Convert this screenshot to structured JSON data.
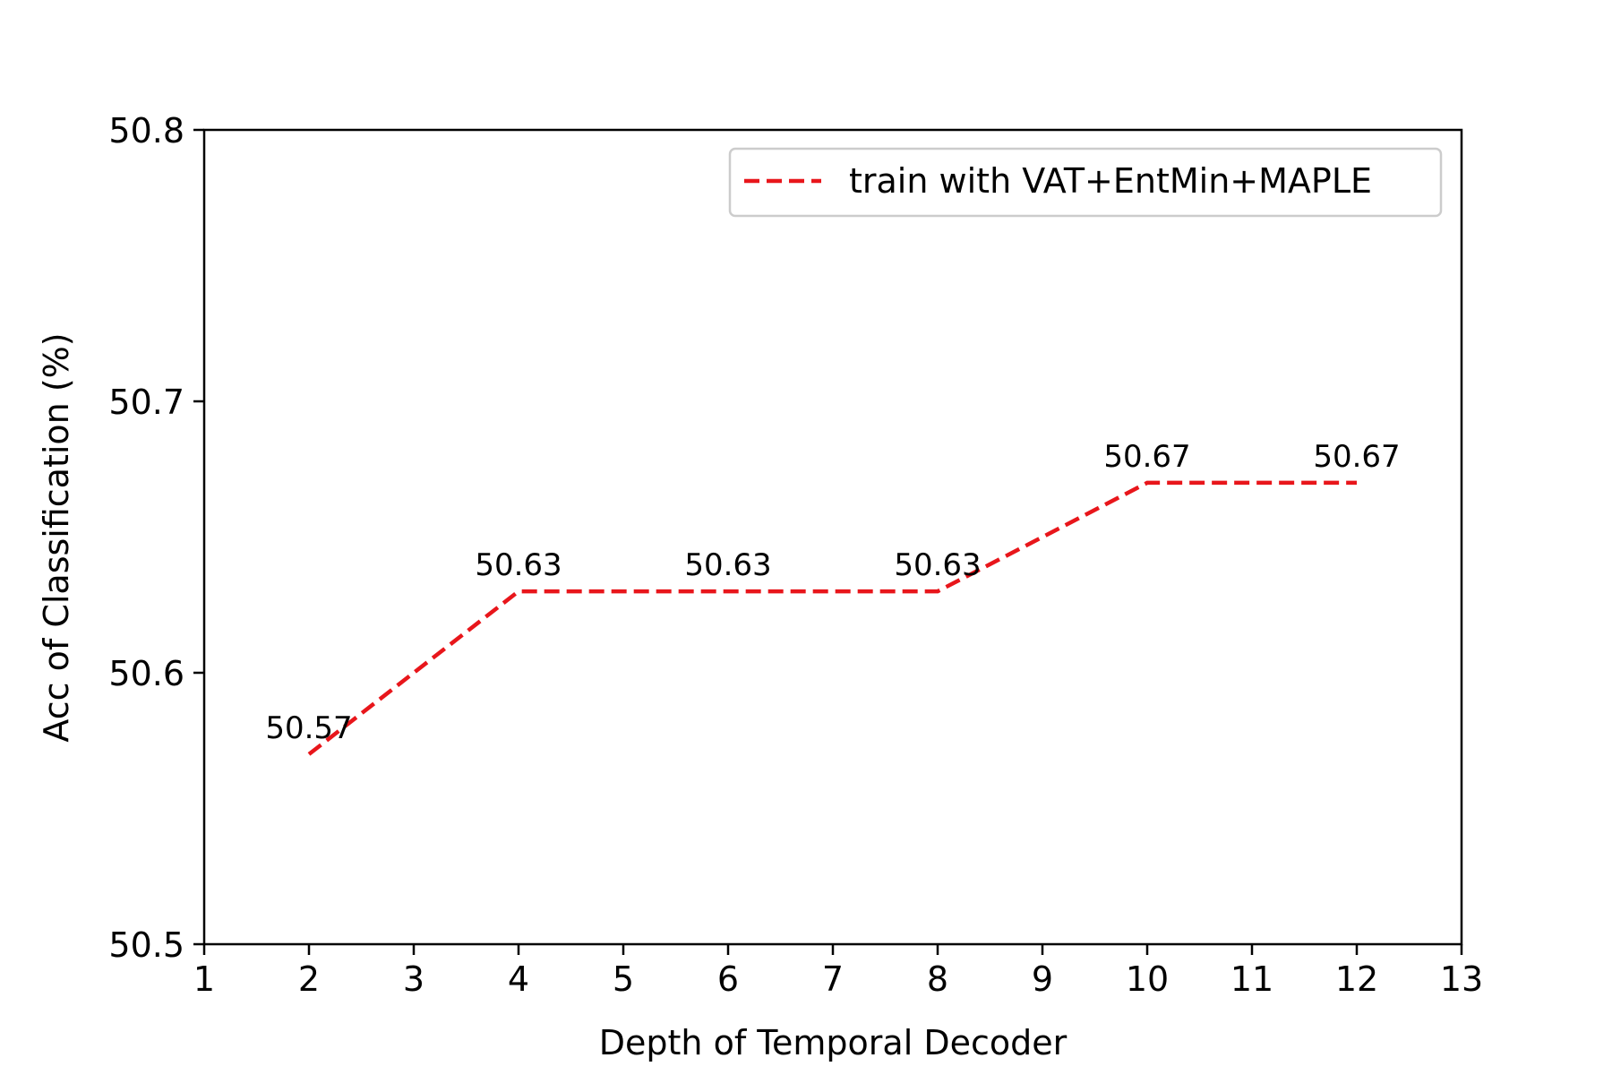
{
  "chart_data": {
    "type": "line",
    "title": "",
    "xlabel": "Depth of Temporal Decoder",
    "ylabel": "Acc of Classification (%)",
    "xlim": [
      1,
      13
    ],
    "ylim": [
      50.5,
      50.8
    ],
    "x_ticks": [
      1,
      2,
      3,
      4,
      5,
      6,
      7,
      8,
      9,
      10,
      11,
      12,
      13
    ],
    "y_ticks": [
      50.5,
      50.6,
      50.7,
      50.8
    ],
    "y_tick_labels": [
      "50.5",
      "50.6",
      "50.7",
      "50.8"
    ],
    "grid": false,
    "legend_position": "top-right",
    "series": [
      {
        "name": "train with VAT+EntMin+MAPLE",
        "color": "#e8161b",
        "line_style": "dashed",
        "x": [
          2,
          4,
          6,
          8,
          10,
          12
        ],
        "y": [
          50.57,
          50.63,
          50.63,
          50.63,
          50.67,
          50.67
        ],
        "data_labels": [
          "50.57",
          "50.63",
          "50.63",
          "50.63",
          "50.67",
          "50.67"
        ]
      }
    ]
  }
}
